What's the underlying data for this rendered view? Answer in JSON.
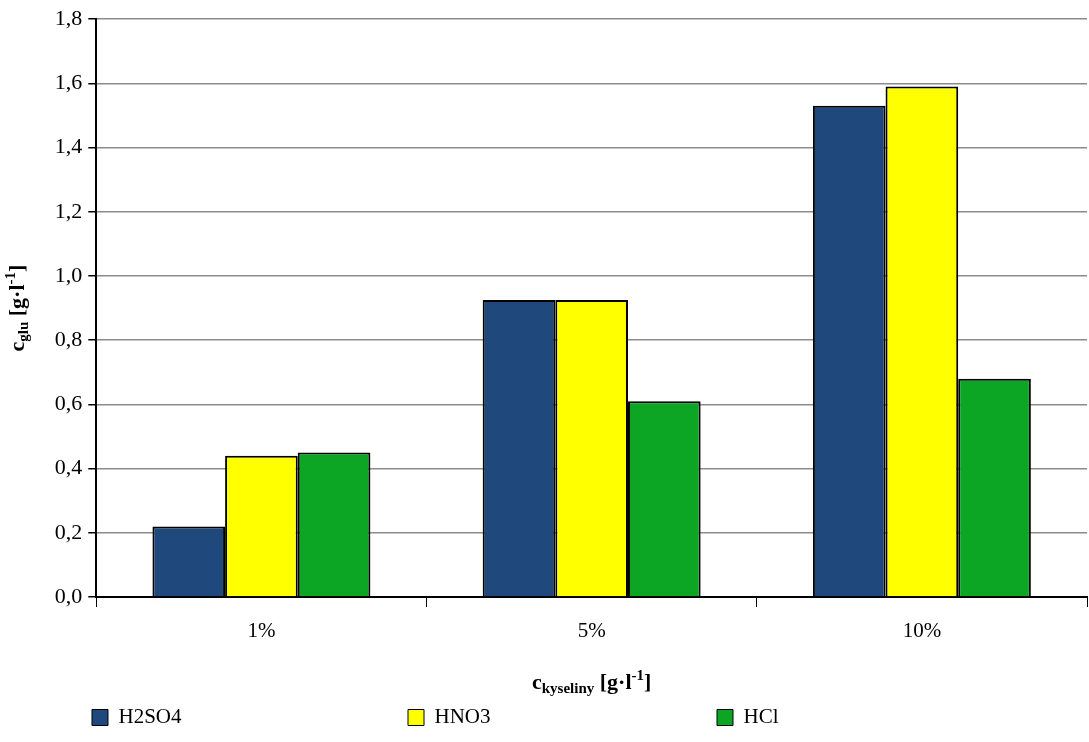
{
  "chart_data": {
    "type": "bar",
    "xlabel": "c$_{kyseliny}$ [g·l$^{-1}$]",
    "ylabel": "c$_{glu}$ [g·l$^{-1}$]",
    "categories": [
      "1%",
      "5%",
      "10%"
    ],
    "series": [
      {
        "name": "H2SO4",
        "color": "#1f497d",
        "values": [
          0.22,
          0.925,
          1.53
        ]
      },
      {
        "name": "HNO3",
        "color": "#ffff00",
        "values": [
          0.44,
          0.925,
          1.59
        ]
      },
      {
        "name": "HCl",
        "color": "#0ca624",
        "values": [
          0.45,
          0.61,
          0.68
        ]
      }
    ],
    "ylim": [
      0,
      1.8
    ],
    "yticks": [
      {
        "value": 0,
        "label": "0,0"
      },
      {
        "value": 0.2,
        "label": "0,2"
      },
      {
        "value": 0.4,
        "label": "0,4"
      },
      {
        "value": 0.6,
        "label": "0,6"
      },
      {
        "value": 0.8,
        "label": "0,8"
      },
      {
        "value": 1.0,
        "label": "1,0"
      },
      {
        "value": 1.2,
        "label": "1,2"
      },
      {
        "value": 1.4,
        "label": "1,4"
      },
      {
        "value": 1.6,
        "label": "1,6"
      },
      {
        "value": 1.8,
        "label": "1,8"
      }
    ],
    "grid": "y",
    "legend": "bottom"
  }
}
